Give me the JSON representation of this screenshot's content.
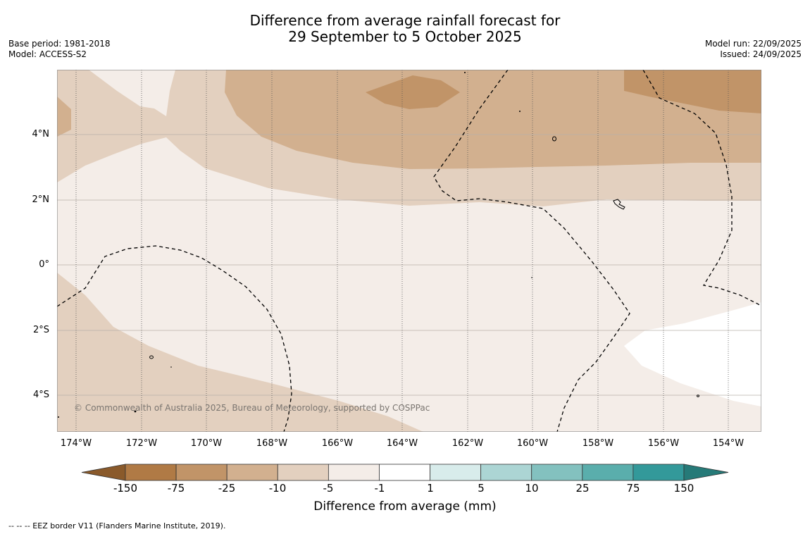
{
  "title": {
    "line1": "Difference from average rainfall forecast for",
    "line2": "29 September to 5 October 2025"
  },
  "meta_left": {
    "base_period": "Base period: 1981-2018",
    "model": "Model: ACCESS-S2"
  },
  "meta_right": {
    "model_run": "Model run: 22/09/2025",
    "issued": "Issued: 24/09/2025"
  },
  "map": {
    "lat_labels": [
      "4°N",
      "2°N",
      "0°",
      "2°S",
      "4°S"
    ],
    "lon_labels": [
      "174°W",
      "172°W",
      "170°W",
      "168°W",
      "166°W",
      "164°W",
      "162°W",
      "160°W",
      "158°W",
      "156°W",
      "154°W"
    ],
    "copyright": "© Commonwealth of Australia 2025, Bureau of Meteorology, supported by COSPPac"
  },
  "colorbar": {
    "labels": [
      "-150",
      "-75",
      "-25",
      "-10",
      "-5",
      "-1",
      "1",
      "5",
      "10",
      "25",
      "75",
      "150"
    ],
    "colors": [
      "#b07a45",
      "#c19468",
      "#d2b08f",
      "#e3d0bf",
      "#f4ede8",
      "#ffffff",
      "#d8eceb",
      "#acd5d4",
      "#83c1bf",
      "#5aaeac",
      "#33999a"
    ],
    "under_color": "#8a5a2b",
    "over_color": "#267a78",
    "title": "Difference from average (mm)"
  },
  "footnote": "--  --  -- EEZ border V11 (Flanders Marine Institute, 2019)."
}
